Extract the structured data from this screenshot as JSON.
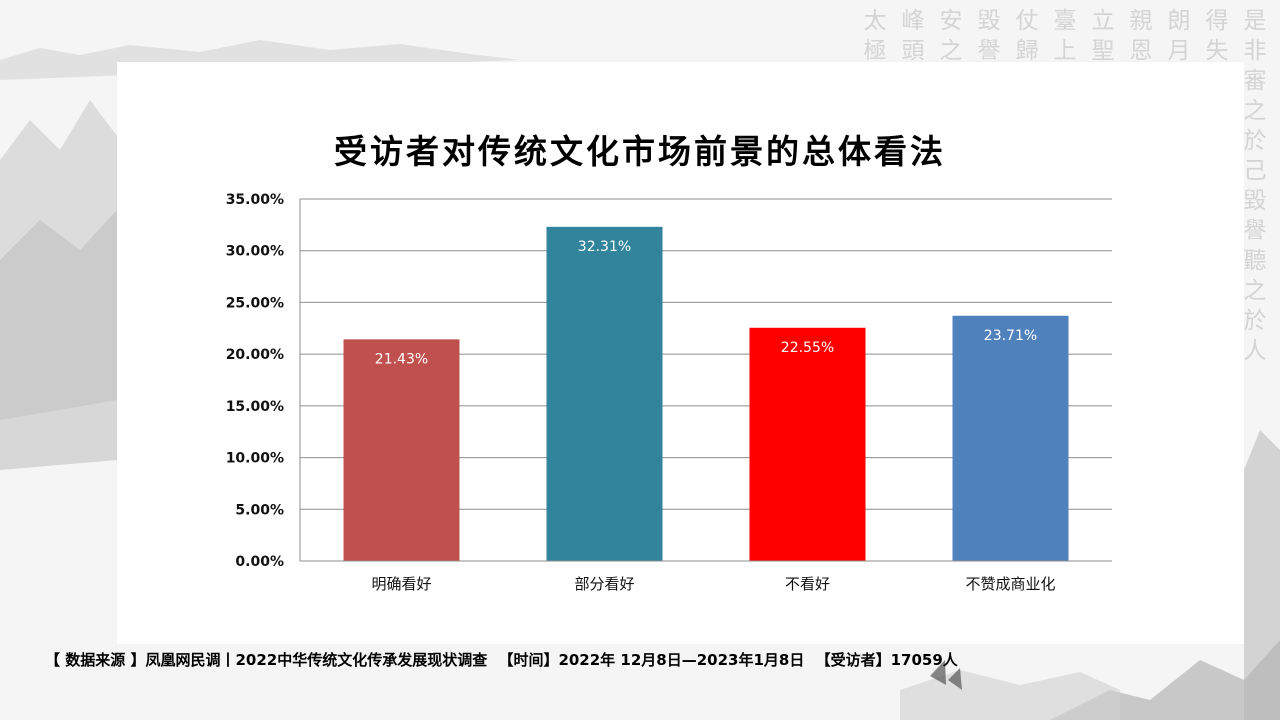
{
  "chart_data": {
    "type": "bar",
    "title": "受访者对传统文化市场前景的总体看法",
    "categories": [
      "明确看好",
      "部分看好",
      "不看好",
      "不赞成商业化"
    ],
    "values": [
      21.43,
      32.31,
      22.55,
      23.71
    ],
    "data_labels": [
      "21.43%",
      "32.31%",
      "22.55%",
      "23.71%"
    ],
    "colors": [
      "#c0504d",
      "#31849b",
      "#ff0000",
      "#4f81bd"
    ],
    "ylim": [
      0,
      35
    ],
    "yticks": [
      0,
      5,
      10,
      15,
      20,
      25,
      30,
      35
    ],
    "ytick_labels": [
      "0.00%",
      "5.00%",
      "10.00%",
      "15.00%",
      "20.00%",
      "25.00%",
      "30.00%",
      "35.00%"
    ],
    "grid": true,
    "legend": false,
    "xlabel": "",
    "ylabel": ""
  },
  "footer": {
    "source": "【  数据来源 】凤凰网民调丨2022中华传统文化传承发展现状调查",
    "time": "【时间】2022年 12月8日—2023年1月8日",
    "respondents": "【受访者】17059人"
  },
  "decoration": {
    "calligraphy_columns": [
      "是非審之於己毀譽聽之於人",
      "得失",
      "朗月",
      "親恩",
      "立聖",
      "臺上",
      "仗歸",
      "毀譽",
      "安之",
      "峰頭",
      "太極"
    ]
  }
}
